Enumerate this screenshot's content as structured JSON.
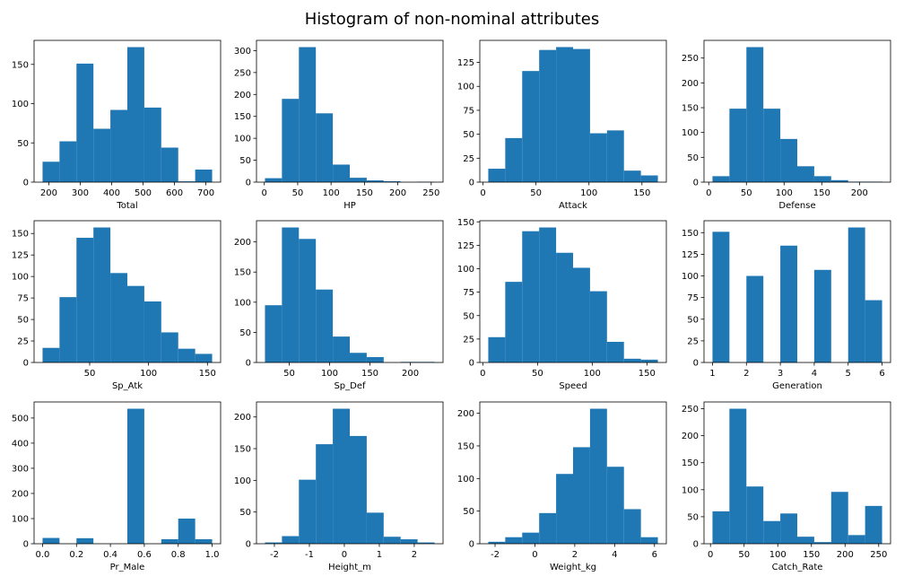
{
  "title": "Histogram of non-nominal attributes",
  "chart_data": [
    {
      "type": "histogram",
      "xlabel": "Total",
      "color": "#1f77b4",
      "bins": [
        180,
        234,
        288,
        342,
        396,
        450,
        504,
        558,
        612,
        666,
        720
      ],
      "counts": [
        26,
        52,
        151,
        68,
        92,
        172,
        95,
        44,
        1,
        16
      ],
      "xlim": [
        153,
        747
      ],
      "ylim": [
        0,
        180.6
      ],
      "xticks": [
        200,
        300,
        400,
        500,
        600,
        700
      ],
      "yticks": [
        0,
        50,
        100,
        150
      ]
    },
    {
      "type": "histogram",
      "xlabel": "HP",
      "color": "#1f77b4",
      "bins": [
        1,
        26.4,
        51.8,
        77.2,
        102.6,
        128,
        153.4,
        178.8,
        204.2,
        229.6,
        255
      ],
      "counts": [
        9,
        190,
        308,
        157,
        40,
        10,
        4,
        2,
        0,
        1
      ],
      "xlim": [
        -11.7,
        267.7
      ],
      "ylim": [
        0,
        323.4
      ],
      "xticks": [
        0,
        50,
        100,
        150,
        200,
        250
      ],
      "yticks": [
        0,
        50,
        100,
        150,
        200,
        250,
        300
      ]
    },
    {
      "type": "histogram",
      "xlabel": "Attack",
      "color": "#1f77b4",
      "bins": [
        5,
        21,
        37,
        53,
        69,
        85,
        101,
        117,
        133,
        149,
        165
      ],
      "counts": [
        14,
        46,
        116,
        138,
        141,
        139,
        51,
        54,
        12,
        7
      ],
      "xlim": [
        -3,
        173
      ],
      "ylim": [
        0,
        148
      ],
      "xticks": [
        0,
        50,
        100,
        150
      ],
      "yticks": [
        0,
        25,
        50,
        75,
        100,
        125
      ]
    },
    {
      "type": "histogram",
      "xlabel": "Defense",
      "color": "#1f77b4",
      "bins": [
        5,
        27.5,
        50,
        72.5,
        95,
        117.5,
        140,
        162.5,
        185,
        207.5,
        230
      ],
      "counts": [
        12,
        148,
        272,
        148,
        87,
        32,
        12,
        4,
        1,
        1
      ],
      "xlim": [
        -6.25,
        241.25
      ],
      "ylim": [
        0,
        285.6
      ],
      "xticks": [
        0,
        50,
        100,
        150,
        200
      ],
      "yticks": [
        0,
        50,
        100,
        150,
        200,
        250
      ]
    },
    {
      "type": "histogram",
      "xlabel": "Sp_Atk",
      "color": "#1f77b4",
      "bins": [
        10,
        24.4,
        38.8,
        53.2,
        67.6,
        82,
        96.4,
        110.8,
        125.2,
        139.6,
        154
      ],
      "counts": [
        17,
        76,
        145,
        157,
        104,
        89,
        71,
        35,
        16,
        10
      ],
      "xlim": [
        2.8,
        161.2
      ],
      "ylim": [
        0,
        164.85
      ],
      "xticks": [
        50,
        100,
        150
      ],
      "yticks": [
        0,
        25,
        50,
        75,
        100,
        125,
        150
      ]
    },
    {
      "type": "histogram",
      "xlabel": "Sp_Def",
      "color": "#1f77b4",
      "bins": [
        20,
        41,
        62,
        83,
        104,
        125,
        146,
        167,
        188,
        209,
        230
      ],
      "counts": [
        95,
        224,
        205,
        121,
        43,
        16,
        9,
        0,
        1,
        1
      ],
      "xlim": [
        9.5,
        240.5
      ],
      "ylim": [
        0,
        235.2
      ],
      "xticks": [
        50,
        100,
        150,
        200
      ],
      "yticks": [
        0,
        50,
        100,
        150,
        200
      ]
    },
    {
      "type": "histogram",
      "xlabel": "Speed",
      "color": "#1f77b4",
      "bins": [
        5,
        20.5,
        36,
        51.5,
        67,
        82.5,
        98,
        113.5,
        129,
        144.5,
        160
      ],
      "counts": [
        27,
        86,
        140,
        144,
        117,
        101,
        76,
        22,
        4,
        3
      ],
      "xlim": [
        -2.75,
        167.75
      ],
      "ylim": [
        0,
        151.2
      ],
      "xticks": [
        0,
        50,
        100,
        150
      ],
      "yticks": [
        0,
        25,
        50,
        75,
        100,
        125,
        150
      ]
    },
    {
      "type": "histogram",
      "xlabel": "Generation",
      "color": "#1f77b4",
      "bins": [
        1,
        1.5,
        2,
        2.5,
        3,
        3.5,
        4,
        4.5,
        5,
        5.5,
        6
      ],
      "counts": [
        151,
        0,
        100,
        0,
        135,
        0,
        107,
        0,
        156,
        72
      ],
      "xlim": [
        0.75,
        6.25
      ],
      "ylim": [
        0,
        163.8
      ],
      "xticks": [
        1,
        2,
        3,
        4,
        5,
        6
      ],
      "yticks": [
        0,
        25,
        50,
        75,
        100,
        125,
        150
      ]
    },
    {
      "type": "histogram",
      "xlabel": "Pr_Male",
      "color": "#1f77b4",
      "bins": [
        0,
        0.1,
        0.2,
        0.3,
        0.4,
        0.5,
        0.6,
        0.7,
        0.8,
        0.9,
        1
      ],
      "counts": [
        23,
        0,
        22,
        0,
        0,
        537,
        0,
        18,
        100,
        18
      ],
      "xlim": [
        -0.05,
        1.05
      ],
      "ylim": [
        0,
        563.85
      ],
      "xticks": [
        {
          "value": 0,
          "label": "0.0"
        },
        0.2,
        0.4,
        0.6,
        0.8,
        {
          "value": 1,
          "label": "1.0"
        }
      ],
      "yticks": [
        0,
        100,
        200,
        300,
        400,
        500
      ]
    },
    {
      "type": "histogram",
      "xlabel": "Height_m",
      "color": "#1f77b4",
      "bins": [
        -2.27,
        -1.785,
        -1.3,
        -0.815,
        -0.33,
        0.155,
        0.64,
        1.125,
        1.61,
        2.095,
        2.58
      ],
      "counts": [
        2,
        12,
        101,
        157,
        213,
        170,
        49,
        11,
        7,
        2
      ],
      "xlim": [
        -2.5125,
        2.8225
      ],
      "ylim": [
        0,
        223.65
      ],
      "xticks": [
        -2,
        -1,
        0,
        1,
        2
      ],
      "yticks": [
        0,
        50,
        100,
        150,
        200
      ]
    },
    {
      "type": "histogram",
      "xlabel": "Weight_kg",
      "color": "#1f77b4",
      "bins": [
        -2.34,
        -1.489,
        -0.638,
        0.213,
        1.064,
        1.915,
        2.766,
        3.617,
        4.468,
        5.319,
        6.17
      ],
      "counts": [
        3,
        10,
        17,
        47,
        107,
        148,
        207,
        118,
        53,
        10
      ],
      "xlim": [
        -2.7655,
        6.5955
      ],
      "ylim": [
        0,
        217.35
      ],
      "xticks": [
        -2,
        0,
        2,
        4,
        6
      ],
      "yticks": [
        0,
        50,
        100,
        150,
        200
      ]
    },
    {
      "type": "histogram",
      "xlabel": "Catch_Rate",
      "color": "#1f77b4",
      "bins": [
        3,
        28.2,
        53.4,
        78.6,
        103.8,
        129,
        154.2,
        179.4,
        204.6,
        229.8,
        255
      ],
      "counts": [
        60,
        250,
        106,
        42,
        56,
        13,
        3,
        96,
        16,
        70
      ],
      "xlim": [
        -9.6,
        267.6
      ],
      "ylim": [
        0,
        262.5
      ],
      "xticks": [
        0,
        50,
        100,
        150,
        200,
        250
      ],
      "yticks": [
        0,
        50,
        100,
        150,
        200,
        250
      ]
    }
  ]
}
